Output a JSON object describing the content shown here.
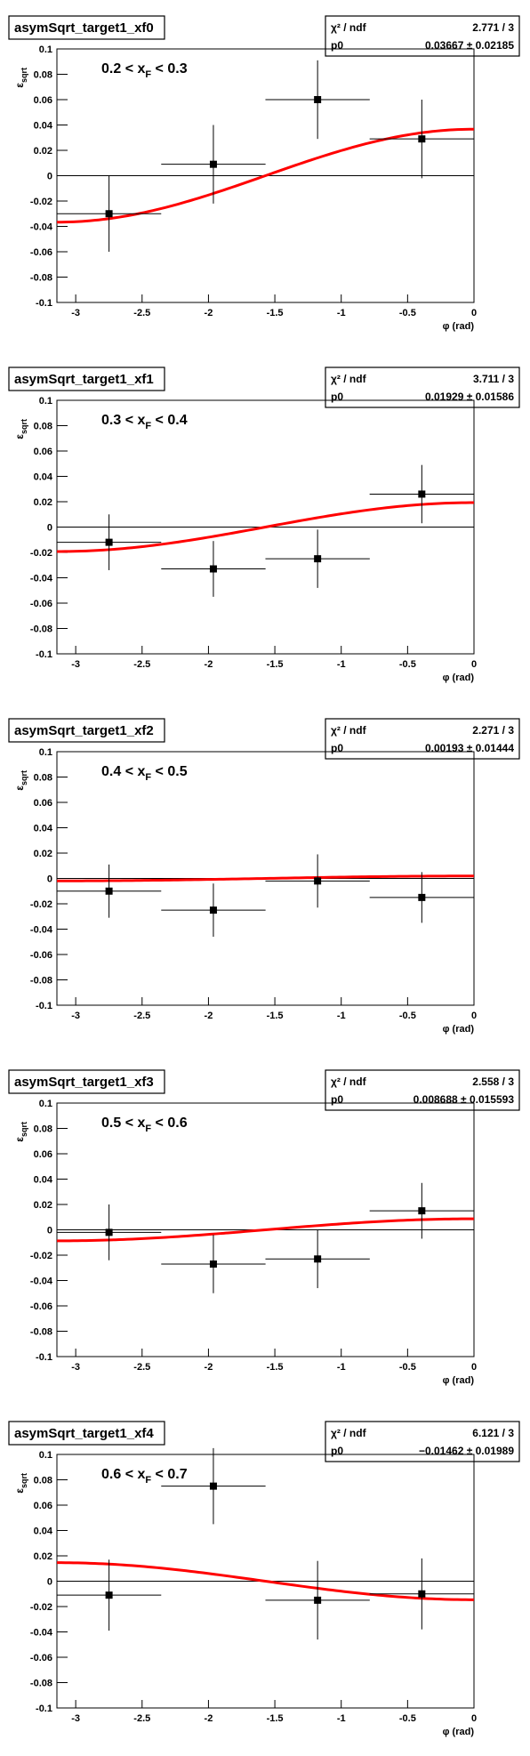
{
  "chart_data": [
    {
      "type": "scatter",
      "title": "asymSqrt_target1_xf0",
      "annotation": [
        "0.2 < x",
        "F",
        " < 0.3"
      ],
      "x_label": "φ (rad)",
      "y_label": [
        "ε",
        "sqrt"
      ],
      "stats": [
        {
          "label": "χ² / ndf",
          "value": "2.771 / 3"
        },
        {
          "label": "p0",
          "value": "0.03667 ± 0.02185"
        }
      ],
      "x": [
        -2.749,
        -1.963,
        -1.178,
        -0.393
      ],
      "x_errors": [
        0.393,
        0.393,
        0.393,
        0.393
      ],
      "values": [
        -0.03,
        0.009,
        0.06,
        0.029
      ],
      "y_errors": [
        0.03,
        0.031,
        0.031,
        0.031
      ],
      "color": "#000000",
      "fit": {
        "p0": 0.03667,
        "color": "#ff0000"
      },
      "xlim": [
        -3.1416,
        0
      ],
      "ylim": [
        -0.1,
        0.1
      ],
      "xticks": [
        -3,
        -2.5,
        -2,
        -1.5,
        -1,
        -0.5,
        0
      ],
      "yticks": [
        -0.1,
        -0.08,
        -0.06,
        -0.04,
        -0.02,
        0,
        0.02,
        0.04,
        0.06,
        0.08,
        0.1
      ]
    },
    {
      "type": "scatter",
      "title": "asymSqrt_target1_xf1",
      "annotation": [
        "0.3 < x",
        "F",
        " < 0.4"
      ],
      "x_label": "φ (rad)",
      "y_label": [
        "ε",
        "sqrt"
      ],
      "stats": [
        {
          "label": "χ² / ndf",
          "value": "3.711 / 3"
        },
        {
          "label": "p0",
          "value": "0.01929 ± 0.01586"
        }
      ],
      "x": [
        -2.749,
        -1.963,
        -1.178,
        -0.393
      ],
      "x_errors": [
        0.393,
        0.393,
        0.393,
        0.393
      ],
      "values": [
        -0.012,
        -0.033,
        -0.025,
        0.026
      ],
      "y_errors": [
        0.022,
        0.022,
        0.023,
        0.023
      ],
      "color": "#000000",
      "fit": {
        "p0": 0.01929,
        "color": "#ff0000"
      },
      "xlim": [
        -3.1416,
        0
      ],
      "ylim": [
        -0.1,
        0.1
      ],
      "xticks": [
        -3,
        -2.5,
        -2,
        -1.5,
        -1,
        -0.5,
        0
      ],
      "yticks": [
        -0.1,
        -0.08,
        -0.06,
        -0.04,
        -0.02,
        0,
        0.02,
        0.04,
        0.06,
        0.08,
        0.1
      ]
    },
    {
      "type": "scatter",
      "title": "asymSqrt_target1_xf2",
      "annotation": [
        "0.4 < x",
        "F",
        " < 0.5"
      ],
      "x_label": "φ (rad)",
      "y_label": [
        "ε",
        "sqrt"
      ],
      "stats": [
        {
          "label": "χ² / ndf",
          "value": "2.271 / 3"
        },
        {
          "label": "p0",
          "value": "0.00193 ± 0.01444"
        }
      ],
      "x": [
        -2.749,
        -1.963,
        -1.178,
        -0.393
      ],
      "x_errors": [
        0.393,
        0.393,
        0.393,
        0.393
      ],
      "values": [
        -0.01,
        -0.025,
        -0.002,
        -0.015
      ],
      "y_errors": [
        0.021,
        0.021,
        0.021,
        0.02
      ],
      "color": "#000000",
      "fit": {
        "p0": 0.00193,
        "color": "#ff0000"
      },
      "xlim": [
        -3.1416,
        0
      ],
      "ylim": [
        -0.1,
        0.1
      ],
      "xticks": [
        -3,
        -2.5,
        -2,
        -1.5,
        -1,
        -0.5,
        0
      ],
      "yticks": [
        -0.1,
        -0.08,
        -0.06,
        -0.04,
        -0.02,
        0,
        0.02,
        0.04,
        0.06,
        0.08,
        0.1
      ]
    },
    {
      "type": "scatter",
      "title": "asymSqrt_target1_xf3",
      "annotation": [
        "0.5 < x",
        "F",
        " < 0.6"
      ],
      "x_label": "φ (rad)",
      "y_label": [
        "ε",
        "sqrt"
      ],
      "stats": [
        {
          "label": "χ² / ndf",
          "value": "2.558 / 3"
        },
        {
          "label": "p0",
          "value": "0.008688 ± 0.015593"
        }
      ],
      "x": [
        -2.749,
        -1.963,
        -1.178,
        -0.393
      ],
      "x_errors": [
        0.393,
        0.393,
        0.393,
        0.393
      ],
      "values": [
        -0.002,
        -0.027,
        -0.023,
        0.015
      ],
      "y_errors": [
        0.022,
        0.023,
        0.023,
        0.022
      ],
      "color": "#000000",
      "fit": {
        "p0": 0.008688,
        "color": "#ff0000"
      },
      "xlim": [
        -3.1416,
        0
      ],
      "ylim": [
        -0.1,
        0.1
      ],
      "xticks": [
        -3,
        -2.5,
        -2,
        -1.5,
        -1,
        -0.5,
        0
      ],
      "yticks": [
        -0.1,
        -0.08,
        -0.06,
        -0.04,
        -0.02,
        0,
        0.02,
        0.04,
        0.06,
        0.08,
        0.1
      ]
    },
    {
      "type": "scatter",
      "title": "asymSqrt_target1_xf4",
      "annotation": [
        "0.6 < x",
        "F",
        " < 0.7"
      ],
      "x_label": "φ (rad)",
      "y_label": [
        "ε",
        "sqrt"
      ],
      "stats": [
        {
          "label": "χ² / ndf",
          "value": "6.121 / 3"
        },
        {
          "label": "p0",
          "value": "−0.01462 ± 0.01989"
        }
      ],
      "x": [
        -2.749,
        -1.963,
        -1.178,
        -0.393
      ],
      "x_errors": [
        0.393,
        0.393,
        0.393,
        0.393
      ],
      "values": [
        -0.011,
        0.075,
        -0.015,
        -0.01
      ],
      "y_errors": [
        0.028,
        0.03,
        0.031,
        0.028
      ],
      "color": "#000000",
      "fit": {
        "p0": -0.01462,
        "color": "#ff0000"
      },
      "xlim": [
        -3.1416,
        0
      ],
      "ylim": [
        -0.1,
        0.1
      ],
      "xticks": [
        -3,
        -2.5,
        -2,
        -1.5,
        -1,
        -0.5,
        0
      ],
      "yticks": [
        -0.1,
        -0.08,
        -0.06,
        -0.04,
        -0.02,
        0,
        0.02,
        0.04,
        0.06,
        0.08,
        0.1
      ]
    }
  ]
}
